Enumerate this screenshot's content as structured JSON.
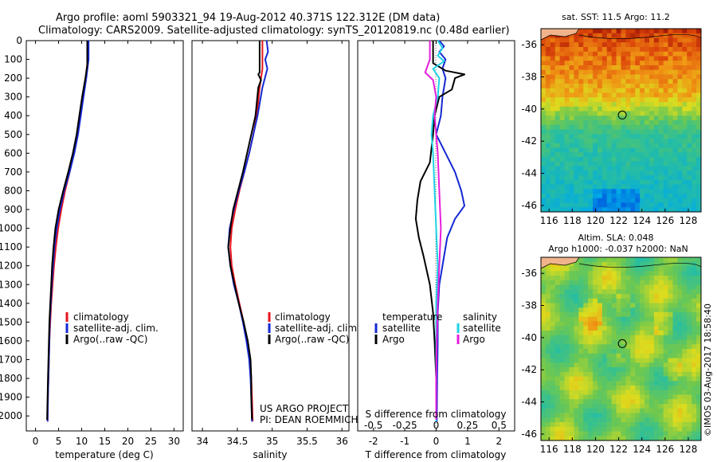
{
  "header": {
    "line1": "Argo profile: aoml 5903321_94 19-Aug-2012 40.371S 122.312E (DM data)",
    "line2": "Climatology: CARS2009. Satellite-adjusted climatology: synTS_20120819.nc (0.48d earlier)"
  },
  "credits": {
    "line1": "US ARGO PROJECT",
    "line2": "PI: DEAN ROEMMICH",
    "watermark": "©IMOS 03-Aug-2017 18:58:40"
  },
  "colors": {
    "climatology": "#e8141e",
    "satellite": "#1428d2",
    "argo": "#000000",
    "sat_salinity": "#1ed2e6",
    "argo_salinity": "#e61edc",
    "land": "#f0b48c"
  },
  "chart_data": [
    {
      "type": "line",
      "xlabel": "temperature (deg C)",
      "xlim": [
        -2,
        32
      ],
      "xticks": [
        "0",
        "5",
        "10",
        "15",
        "20",
        "25",
        "30"
      ],
      "ylim": [
        2080,
        0
      ],
      "yticks": [
        "0",
        "100",
        "200",
        "300",
        "400",
        "500",
        "600",
        "700",
        "800",
        "900",
        "1000",
        "1100",
        "1200",
        "1300",
        "1400",
        "1500",
        "1600",
        "1700",
        "1800",
        "1900",
        "2000"
      ],
      "legend": [
        "climatology",
        "satellite-adj. clim.",
        "Argo(..raw -QC)"
      ],
      "series": [
        {
          "name": "climatology",
          "color": "red",
          "points": [
            [
              11.3,
              0
            ],
            [
              11.3,
              100
            ],
            [
              10.9,
              200
            ],
            [
              10.2,
              300
            ],
            [
              9.6,
              400
            ],
            [
              9.0,
              500
            ],
            [
              8.3,
              600
            ],
            [
              7.4,
              700
            ],
            [
              6.4,
              800
            ],
            [
              5.6,
              900
            ],
            [
              4.9,
              1000
            ],
            [
              4.4,
              1100
            ],
            [
              4.0,
              1200
            ],
            [
              3.7,
              1300
            ],
            [
              3.4,
              1400
            ],
            [
              3.2,
              1500
            ],
            [
              3.0,
              1600
            ],
            [
              2.9,
              1700
            ],
            [
              2.8,
              1800
            ],
            [
              2.7,
              1900
            ],
            [
              2.6,
              2030
            ]
          ]
        },
        {
          "name": "satellite-adj. clim.",
          "color": "blue",
          "points": [
            [
              11.5,
              0
            ],
            [
              11.5,
              100
            ],
            [
              11.0,
              200
            ],
            [
              10.4,
              300
            ],
            [
              9.8,
              400
            ],
            [
              9.2,
              500
            ],
            [
              8.4,
              600
            ],
            [
              7.4,
              700
            ],
            [
              6.2,
              800
            ],
            [
              5.3,
              900
            ],
            [
              4.6,
              1000
            ],
            [
              4.1,
              1100
            ],
            [
              3.8,
              1200
            ],
            [
              3.5,
              1300
            ],
            [
              3.3,
              1400
            ],
            [
              3.1,
              1500
            ],
            [
              3.0,
              1600
            ],
            [
              2.9,
              1700
            ],
            [
              2.8,
              1800
            ],
            [
              2.7,
              1900
            ],
            [
              2.6,
              2030
            ]
          ]
        },
        {
          "name": "Argo(..raw -QC)",
          "color": "black",
          "points": [
            [
              11.2,
              0
            ],
            [
              11.2,
              130
            ],
            [
              10.8,
              200
            ],
            [
              10.1,
              300
            ],
            [
              9.5,
              400
            ],
            [
              8.9,
              500
            ],
            [
              8.1,
              600
            ],
            [
              7.1,
              700
            ],
            [
              6.0,
              800
            ],
            [
              5.0,
              900
            ],
            [
              4.3,
              1000
            ],
            [
              3.9,
              1100
            ],
            [
              3.6,
              1200
            ],
            [
              3.4,
              1300
            ],
            [
              3.2,
              1400
            ],
            [
              3.0,
              1500
            ],
            [
              2.9,
              1600
            ],
            [
              2.8,
              1700
            ],
            [
              2.7,
              1800
            ],
            [
              2.6,
              1900
            ],
            [
              2.5,
              2020
            ]
          ]
        }
      ]
    },
    {
      "type": "line",
      "xlabel": "salinity",
      "xlim": [
        33.85,
        36.1
      ],
      "xticks": [
        "34",
        "34.5",
        "35",
        "35.5",
        "36"
      ],
      "ylim": [
        2080,
        0
      ],
      "legend": [
        "climatology",
        "satellite-adj. clim.",
        "Argo(..raw -QC)"
      ],
      "series": [
        {
          "name": "climatology",
          "color": "red",
          "points": [
            [
              34.86,
              0
            ],
            [
              34.86,
              150
            ],
            [
              34.82,
              250
            ],
            [
              34.78,
              400
            ],
            [
              34.73,
              500
            ],
            [
              34.67,
              600
            ],
            [
              34.6,
              700
            ],
            [
              34.53,
              800
            ],
            [
              34.47,
              900
            ],
            [
              34.42,
              1000
            ],
            [
              34.4,
              1100
            ],
            [
              34.42,
              1200
            ],
            [
              34.47,
              1300
            ],
            [
              34.53,
              1400
            ],
            [
              34.59,
              1500
            ],
            [
              34.64,
              1600
            ],
            [
              34.68,
              1700
            ],
            [
              34.7,
              1800
            ],
            [
              34.71,
              1900
            ],
            [
              34.72,
              2030
            ]
          ]
        },
        {
          "name": "satellite-adj. clim.",
          "color": "blue",
          "points": [
            [
              34.92,
              0
            ],
            [
              34.94,
              60
            ],
            [
              34.9,
              100
            ],
            [
              34.93,
              150
            ],
            [
              34.86,
              250
            ],
            [
              34.79,
              400
            ],
            [
              34.73,
              500
            ],
            [
              34.67,
              600
            ],
            [
              34.6,
              700
            ],
            [
              34.52,
              800
            ],
            [
              34.45,
              900
            ],
            [
              34.39,
              1000
            ],
            [
              34.37,
              1100
            ],
            [
              34.4,
              1200
            ],
            [
              34.45,
              1300
            ],
            [
              34.52,
              1400
            ],
            [
              34.58,
              1500
            ],
            [
              34.63,
              1600
            ],
            [
              34.67,
              1700
            ],
            [
              34.69,
              1800
            ],
            [
              34.7,
              1900
            ],
            [
              34.71,
              2030
            ]
          ]
        },
        {
          "name": "Argo(..raw -QC)",
          "color": "black",
          "points": [
            [
              34.82,
              0
            ],
            [
              34.82,
              170
            ],
            [
              34.8,
              180
            ],
            [
              34.84,
              210
            ],
            [
              34.8,
              250
            ],
            [
              34.76,
              400
            ],
            [
              34.7,
              500
            ],
            [
              34.64,
              600
            ],
            [
              34.58,
              700
            ],
            [
              34.51,
              800
            ],
            [
              34.44,
              900
            ],
            [
              34.4,
              1000
            ],
            [
              34.37,
              1100
            ],
            [
              34.4,
              1200
            ],
            [
              34.46,
              1300
            ],
            [
              34.52,
              1400
            ],
            [
              34.59,
              1500
            ],
            [
              34.65,
              1600
            ],
            [
              34.69,
              1700
            ],
            [
              34.7,
              1800
            ],
            [
              34.7,
              1900
            ],
            [
              34.71,
              2020
            ]
          ]
        }
      ]
    },
    {
      "type": "line",
      "xlabel": "T difference from climatology",
      "x2label": "S difference from climatology",
      "xlim": [
        -2.5,
        2.5
      ],
      "xticks": [
        "-2",
        "-1",
        "0",
        "1",
        "2"
      ],
      "x2ticks": [
        "-0.5",
        "-0.25",
        "0",
        "0.25",
        "0.5"
      ],
      "ylim": [
        2080,
        0
      ],
      "legend_left_title": "temperature",
      "legend_right_title": "salinity",
      "legend_left": [
        "satellite",
        "Argo"
      ],
      "legend_right": [
        "satellite",
        "Argo"
      ],
      "series": [
        {
          "name": "satellite",
          "color": "blue",
          "points": [
            [
              0.1,
              0
            ],
            [
              0.25,
              30
            ],
            [
              0.1,
              60
            ],
            [
              0.3,
              100
            ],
            [
              0.2,
              150
            ],
            [
              0.3,
              200
            ],
            [
              0.2,
              300
            ],
            [
              0.15,
              400
            ],
            [
              0.0,
              500
            ],
            [
              0.3,
              600
            ],
            [
              0.6,
              700
            ],
            [
              0.8,
              800
            ],
            [
              0.9,
              880
            ],
            [
              0.6,
              950
            ],
            [
              0.35,
              1050
            ],
            [
              0.2,
              1200
            ],
            [
              0.1,
              1300
            ],
            [
              0.05,
              1450
            ],
            [
              0.05,
              1600
            ],
            [
              0.03,
              1800
            ],
            [
              0.02,
              2030
            ]
          ]
        },
        {
          "name": "Argo",
          "color": "black",
          "points": [
            [
              -0.1,
              0
            ],
            [
              -0.1,
              120
            ],
            [
              0.3,
              160
            ],
            [
              0.9,
              180
            ],
            [
              0.6,
              200
            ],
            [
              0.5,
              260
            ],
            [
              0.1,
              300
            ],
            [
              -0.05,
              400
            ],
            [
              -0.1,
              500
            ],
            [
              -0.2,
              650
            ],
            [
              -0.5,
              750
            ],
            [
              -0.6,
              850
            ],
            [
              -0.65,
              950
            ],
            [
              -0.55,
              1050
            ],
            [
              -0.4,
              1150
            ],
            [
              -0.2,
              1300
            ],
            [
              -0.1,
              1450
            ],
            [
              -0.05,
              1600
            ],
            [
              0.0,
              1800
            ],
            [
              0.0,
              2020
            ]
          ]
        },
        {
          "name": "sat-salinity",
          "color": "cyan",
          "points": [
            [
              0.05,
              0
            ],
            [
              0.2,
              40
            ],
            [
              0.05,
              80
            ],
            [
              0.25,
              110
            ],
            [
              -0.1,
              150
            ],
            [
              0.1,
              200
            ],
            [
              0.05,
              300
            ],
            [
              -0.1,
              400
            ],
            [
              -0.15,
              500
            ],
            [
              -0.1,
              600
            ],
            [
              -0.05,
              800
            ],
            [
              0.0,
              1000
            ],
            [
              0.05,
              1200
            ],
            [
              0.0,
              1400
            ],
            [
              0.0,
              1600
            ],
            [
              0.0,
              1800
            ],
            [
              0.0,
              2030
            ]
          ]
        },
        {
          "name": "Argo-salinity",
          "color": "magenta",
          "points": [
            [
              -0.2,
              0
            ],
            [
              -0.2,
              100
            ],
            [
              -0.35,
              170
            ],
            [
              -0.1,
              210
            ],
            [
              0.0,
              300
            ],
            [
              -0.05,
              400
            ],
            [
              0.05,
              600
            ],
            [
              0.1,
              800
            ],
            [
              0.15,
              1000
            ],
            [
              0.1,
              1200
            ],
            [
              0.05,
              1400
            ],
            [
              0.02,
              1600
            ],
            [
              0.0,
              1800
            ],
            [
              0.0,
              2020
            ]
          ]
        }
      ]
    },
    {
      "type": "heatmap",
      "title": "sat. SST: 11.5 Argo: 11.2",
      "xticks": [
        "116",
        "118",
        "120",
        "122",
        "124",
        "126",
        "128"
      ],
      "yticks": [
        "-36",
        "-38",
        "-40",
        "-42",
        "-44",
        "-46"
      ],
      "profile_location": {
        "lon": 122.312,
        "lat": -40.371
      }
    },
    {
      "type": "heatmap",
      "title": "Altim. SLA: 0.048",
      "subtitle": "Argo h1000: -0.037 h2000: NaN",
      "xticks": [
        "116",
        "118",
        "120",
        "122",
        "124",
        "126",
        "128"
      ],
      "yticks": [
        "-36",
        "-38",
        "-40",
        "-42",
        "-44",
        "-46"
      ],
      "profile_location": {
        "lon": 122.312,
        "lat": -40.371
      }
    }
  ]
}
